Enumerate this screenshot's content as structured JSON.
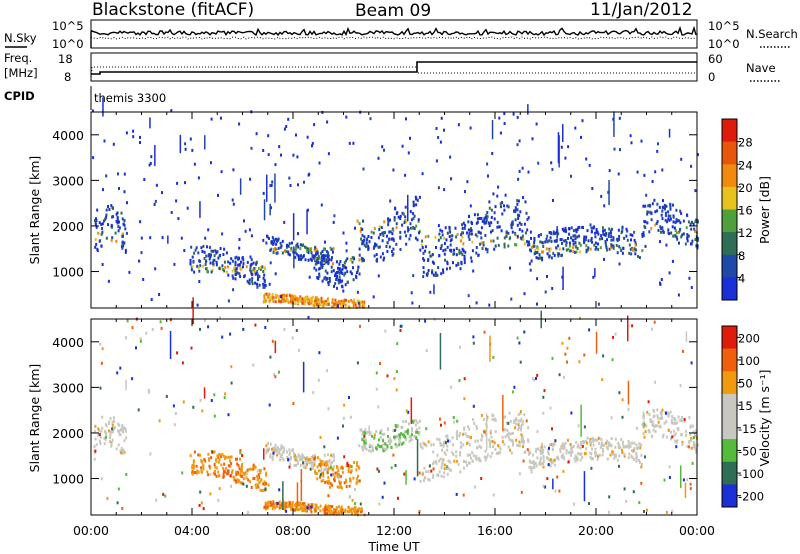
{
  "header": {
    "radar": "Blackstone (fitACF)",
    "beam": "Beam 09",
    "date": "11/Jan/2012"
  },
  "panels": {
    "nsky_label": "N.Sky",
    "nsky_ticks": [
      "10^5",
      "10^0"
    ],
    "nsearch_label": "N.Search",
    "freq_label": "Freq.",
    "freq_unit": "[MHz]",
    "freq_ticks": [
      "18",
      "8"
    ],
    "nave_label": "Nave",
    "nave_ticks": [
      "60",
      "0"
    ],
    "cpid_label": "CPID",
    "cpid_value": "themis 3300"
  },
  "colors": {
    "power_scale": [
      "#1b2fd6",
      "#1f49a8",
      "#2f6e54",
      "#4ea03a",
      "#e8c21c",
      "#f08a10",
      "#e8560c",
      "#dd1c0c"
    ],
    "velocity_scale": [
      "#1b2fd6",
      "#2f6e54",
      "#55bb3a",
      "#c8c8c0",
      "#c8c8c0",
      "#f09a10",
      "#f0600c",
      "#dd1c0c"
    ]
  },
  "chart_data": [
    {
      "type": "heatmap",
      "panel": "power",
      "ylabel": "Slant Range [km]",
      "ylim": [
        200,
        4500
      ],
      "y_ticks": [
        "1000",
        "2000",
        "3000",
        "4000"
      ],
      "xlim": [
        "00:00",
        "24:00"
      ],
      "x_ticks": [
        "00:00",
        "04:00",
        "08:00",
        "12:00",
        "16:00",
        "20:00",
        "00:00"
      ],
      "colorbar_label": "Power [dB]",
      "colorbar_ticks": [
        "4",
        "8",
        "12",
        "16",
        "20",
        "24",
        "28"
      ],
      "bands": [
        {
          "t0": 0.1,
          "t1": 1.4,
          "r0": 1250,
          "r1": 2150
        },
        {
          "t0": 3.9,
          "t1": 6.9,
          "r0": 700,
          "r1": 1350
        },
        {
          "t0": 6.9,
          "t1": 9.6,
          "r0": 1250,
          "r1": 1650
        },
        {
          "t0": 8.8,
          "t1": 10.6,
          "r0": 800,
          "r1": 1500
        },
        {
          "t0": 10.5,
          "t1": 13.0,
          "r0": 1450,
          "r1": 2450
        },
        {
          "t0": 13.0,
          "t1": 17.3,
          "r0": 1100,
          "r1": 2200
        },
        {
          "t0": 17.3,
          "t1": 21.8,
          "r0": 1150,
          "r1": 1800
        },
        {
          "t0": 21.8,
          "t1": 24.0,
          "r0": 1500,
          "r1": 2300
        },
        {
          "t0": 6.8,
          "t1": 10.8,
          "r0": 220,
          "r1": 420
        }
      ]
    },
    {
      "type": "heatmap",
      "panel": "velocity",
      "ylabel": "Slant Range [km]",
      "ylim": [
        200,
        4500
      ],
      "y_ticks": [
        "1000",
        "2000",
        "3000",
        "4000"
      ],
      "xlim": [
        "00:00",
        "24:00"
      ],
      "x_ticks": [
        "00:00",
        "04:00",
        "08:00",
        "12:00",
        "16:00",
        "20:00",
        "00:00"
      ],
      "xlabel": "Time UT",
      "colorbar_label": "Velocity [m s⁻¹]",
      "colorbar_ticks": [
        "200",
        "100",
        "50",
        "15",
        "-15",
        "-50",
        "-100",
        "-200"
      ],
      "bands": [
        {
          "t0": 0.1,
          "t1": 1.4,
          "r0": 1300,
          "r1": 2100
        },
        {
          "t0": 3.9,
          "t1": 6.9,
          "r0": 800,
          "r1": 1400
        },
        {
          "t0": 6.9,
          "t1": 9.6,
          "r0": 1250,
          "r1": 1650
        },
        {
          "t0": 8.8,
          "t1": 10.6,
          "r0": 900,
          "r1": 1450
        },
        {
          "t0": 10.5,
          "t1": 13.0,
          "r0": 1700,
          "r1": 2250
        },
        {
          "t0": 13.0,
          "t1": 17.3,
          "r0": 1100,
          "r1": 2150
        },
        {
          "t0": 17.3,
          "t1": 21.8,
          "r0": 1150,
          "r1": 1700
        },
        {
          "t0": 21.8,
          "t1": 24.0,
          "r0": 1600,
          "r1": 2300
        },
        {
          "t0": 6.8,
          "t1": 10.8,
          "r0": 220,
          "r1": 420
        }
      ]
    }
  ]
}
